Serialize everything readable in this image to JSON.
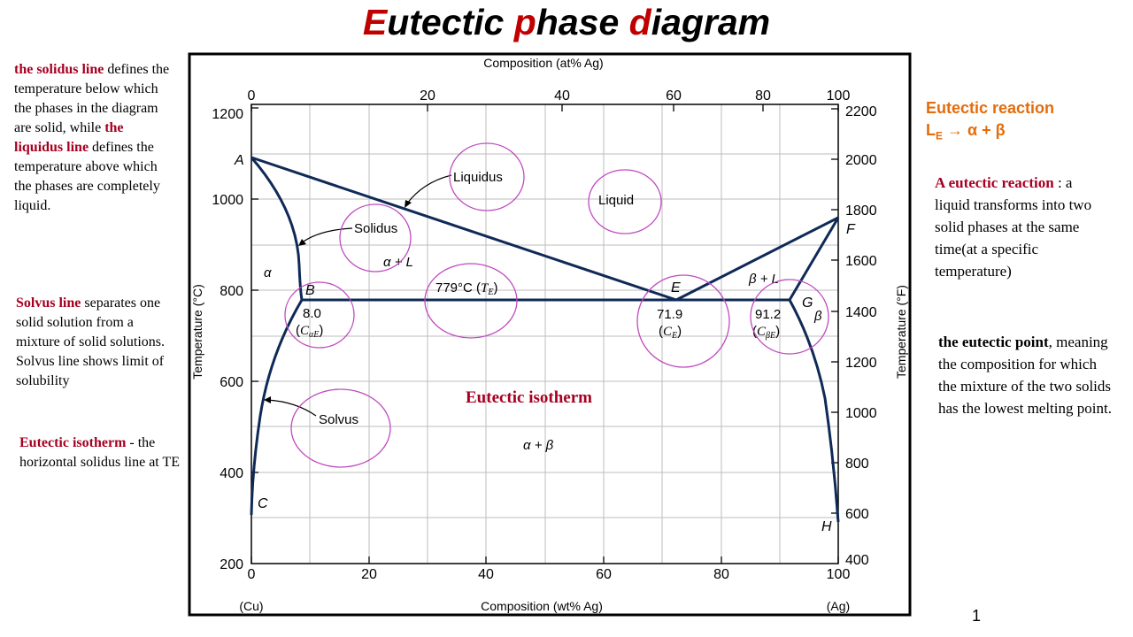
{
  "title": {
    "parts": [
      "E",
      "utectic ",
      "p",
      "hase ",
      "d",
      "iagram"
    ]
  },
  "left_notes": {
    "solidus_term": "the solidus line",
    "solidus_rest1": " defines the temperature below which the phases in the diagram are solid, while ",
    "liquidus_term": "the liquidus line",
    "liquidus_rest": " defines the temperature above which the phases are completely liquid.",
    "solvus_term": "Solvus line",
    "solvus_rest": " separates one solid solution from a mixture of solid solutions. Solvus line shows limit of solubility",
    "isotherm_term": "Eutectic isotherm",
    "isotherm_rest": " - the horizontal solidus line at TE"
  },
  "right_notes": {
    "reaction_title": "Eutectic reaction",
    "reaction_formula_L": "L",
    "reaction_formula_sub": "E",
    "reaction_formula_rest": " → α + β",
    "reaction_def_term": "A eutectic reaction",
    "reaction_def_rest": " : a liquid transforms into two solid phases at the same time(at a specific temperature)",
    "point_term": "the eutectic point",
    "point_rest": ", meaning the composition for which the mixture of the two solids has the lowest melting point."
  },
  "page_number": "1",
  "diagram": {
    "top_axis_title": "Composition (at% Ag)",
    "bottom_axis_title": "Composition (wt% Ag)",
    "left_axis_title": "Temperature (°C)",
    "right_axis_title": "Temperature (°F)",
    "bottom_left_label": "(Cu)",
    "bottom_right_label": "(Ag)",
    "bottom_ticks": [
      "0",
      "20",
      "40",
      "60",
      "80",
      "100"
    ],
    "top_ticks": [
      "0",
      "20",
      "40",
      "60",
      "80",
      "100"
    ],
    "left_ticks": [
      "200",
      "400",
      "600",
      "800",
      "1000",
      "1200"
    ],
    "right_ticks": [
      "400",
      "600",
      "800",
      "1000",
      "1200",
      "1400",
      "1600",
      "1800",
      "2000",
      "2200"
    ],
    "point_labels": {
      "A": "A",
      "B": "B",
      "C": "C",
      "E": "E",
      "F": "F",
      "G": "G",
      "H": "H"
    },
    "region_labels": {
      "liquid": "Liquid",
      "alpha": "α",
      "beta": "β",
      "alpha_L": "α + L",
      "beta_L": "β + L",
      "alpha_beta": "α + β"
    },
    "callouts": {
      "liquidus": "Liquidus",
      "solidus": "Solidus",
      "solvus": "Solvus"
    },
    "values": {
      "te": "779°C (",
      "te_sym": "T",
      "te_sub": "E",
      "cae_val": "8.0",
      "cae_sym": "C",
      "cae_sub": "αE",
      "ce_val": "71.9",
      "ce_sym": "C",
      "ce_sub": "E",
      "cbe_val": "91.2",
      "cbe_sym": "C",
      "cbe_sub": "βE"
    },
    "isotherm_label": "Eutectic isotherm",
    "colors": {
      "phase_line": "#0f2a57",
      "highlight_circle": "#c04bbf",
      "grid": "#bdbdbd"
    }
  }
}
